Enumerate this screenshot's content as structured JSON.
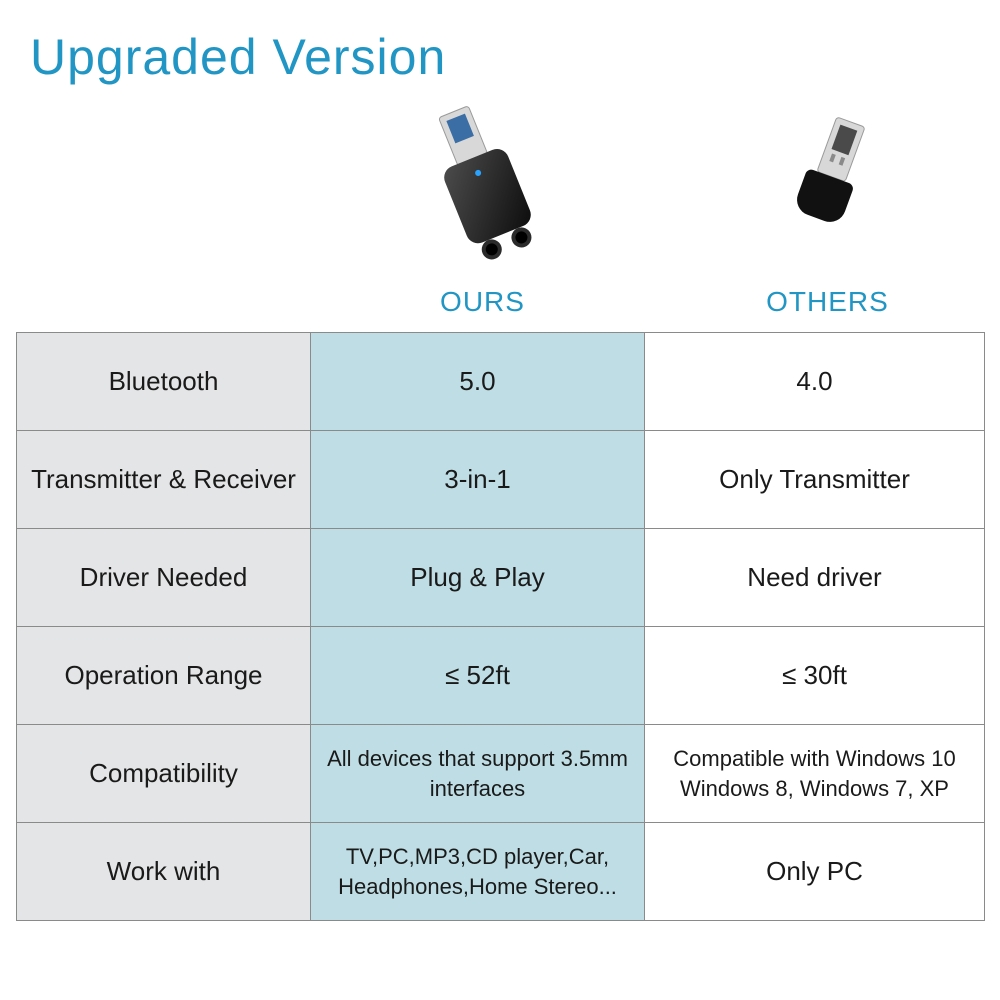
{
  "title": "Upgraded Version",
  "title_color": "#2196c4",
  "labels": {
    "ours": "OURS",
    "others": "OTHERS",
    "color": "#2196c4"
  },
  "columns": {
    "feature_bg": "#e4e5e6",
    "ours_bg": "#bedde4",
    "others_bg": "#ffffff",
    "border_color": "#8a8a8a",
    "text_color": "#1a1a1a"
  },
  "rows": [
    {
      "feature": "Bluetooth",
      "ours": "5.0",
      "others": "4.0"
    },
    {
      "feature": "Transmitter & Receiver",
      "ours": "3-in-1",
      "others": "Only Transmitter"
    },
    {
      "feature": "Driver Needed",
      "ours": "Plug & Play",
      "others": "Need driver"
    },
    {
      "feature": "Operation Range",
      "ours": "≤ 52ft",
      "others": "≤ 30ft"
    },
    {
      "feature": "Compatibility",
      "ours": "All devices that support 3.5mm interfaces",
      "others": "Compatible with Windows 10 Windows 8, Windows 7, XP",
      "small": true
    },
    {
      "feature": "Work with",
      "ours": "TV,PC,MP3,CD player,Car, Headphones,Home Stereo...",
      "others": "Only PC",
      "small_ours": true
    }
  ],
  "fonts": {
    "title_size": 50,
    "label_size": 28,
    "cell_size": 26,
    "cell_small_size": 22
  },
  "product_icons": {
    "ours": {
      "body_fill": "#111111",
      "usb_fill": "#d8d8d8",
      "led": "#2aa3ff"
    },
    "others": {
      "body_fill": "#111111",
      "usb_fill": "#d8d8d8"
    }
  }
}
